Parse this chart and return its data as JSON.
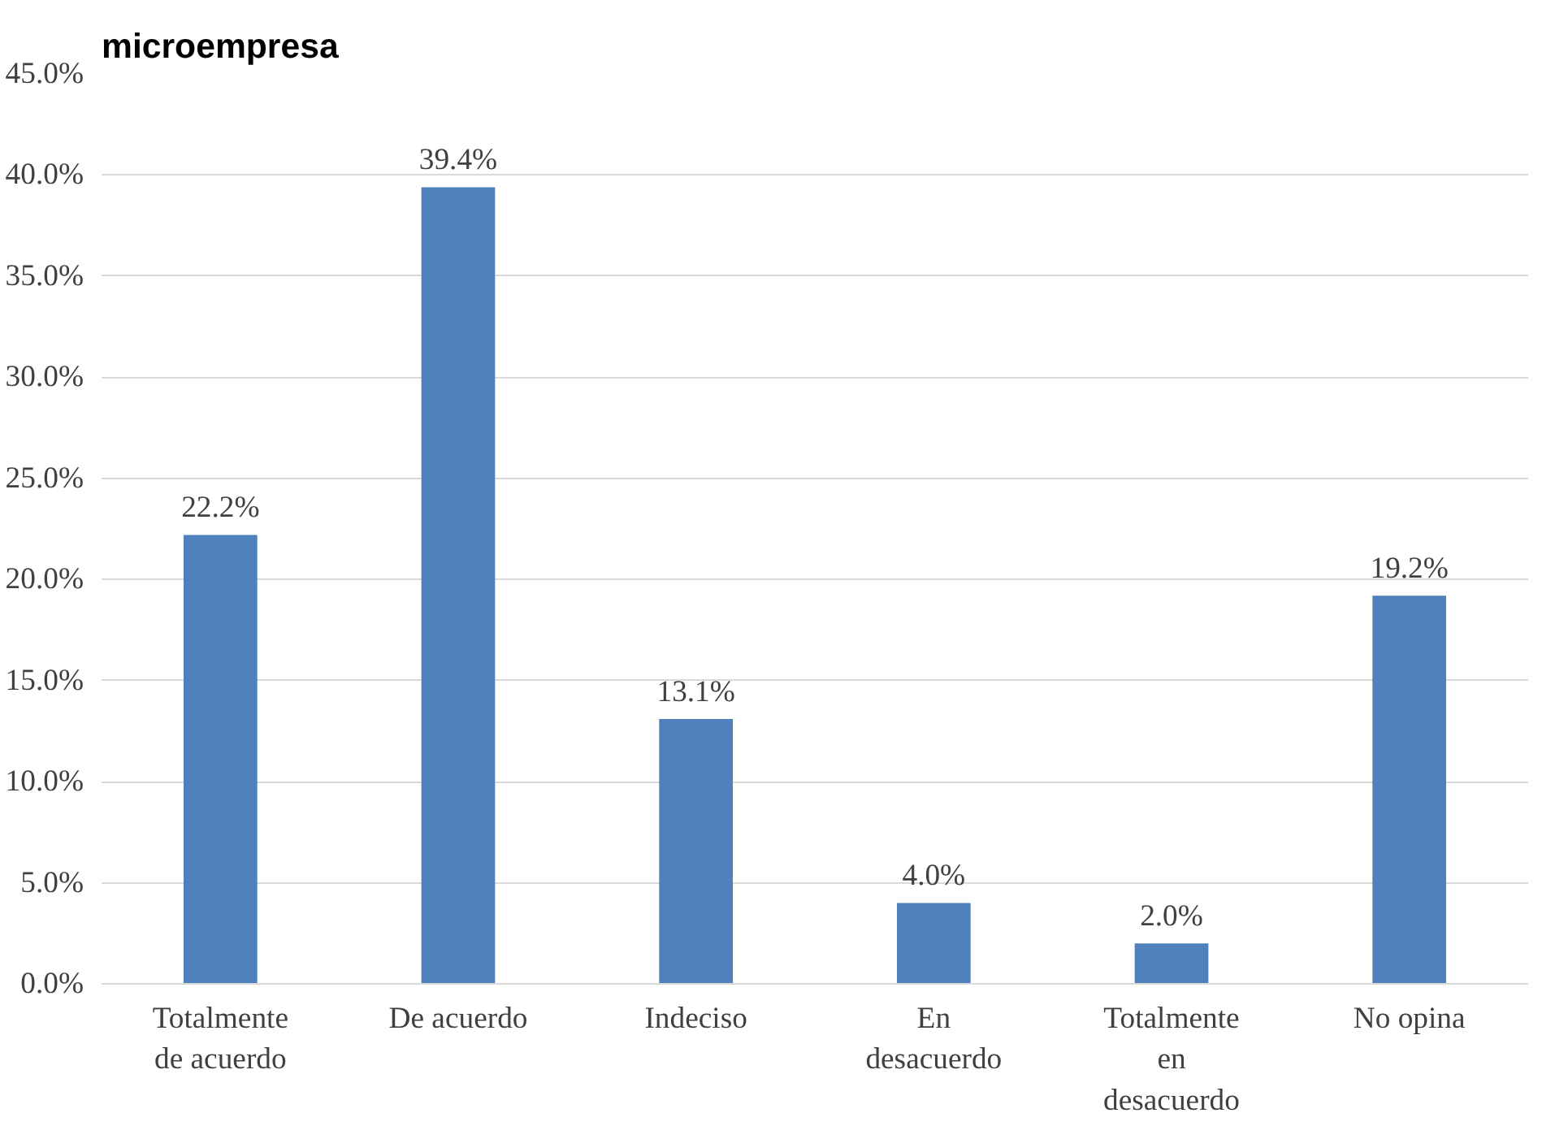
{
  "chart_data": {
    "type": "bar",
    "title": "microempresa",
    "categories": [
      "Totalmente de acuerdo",
      "De acuerdo",
      "Indeciso",
      "En desacuerdo",
      "Totalmente en desacuerdo",
      "No opina"
    ],
    "values": [
      22.2,
      39.4,
      13.1,
      4.0,
      2.0,
      19.2
    ],
    "value_labels": [
      "22.2%",
      "39.4%",
      "13.1%",
      "4.0%",
      "2.0%",
      "19.2%"
    ],
    "color": "#4f81bd",
    "ylim": [
      0,
      45
    ],
    "yticks": [
      {
        "value": 0,
        "label": "0.0%"
      },
      {
        "value": 5,
        "label": "5.0%"
      },
      {
        "value": 10,
        "label": "10.0%"
      },
      {
        "value": 15,
        "label": "15.0%"
      },
      {
        "value": 20,
        "label": "20.0%"
      },
      {
        "value": 25,
        "label": "25.0%"
      },
      {
        "value": 30,
        "label": "30.0%"
      },
      {
        "value": 35,
        "label": "35.0%"
      },
      {
        "value": 40,
        "label": "40.0%"
      },
      {
        "value": 45,
        "label": "45.0%"
      }
    ],
    "grid": "y"
  }
}
